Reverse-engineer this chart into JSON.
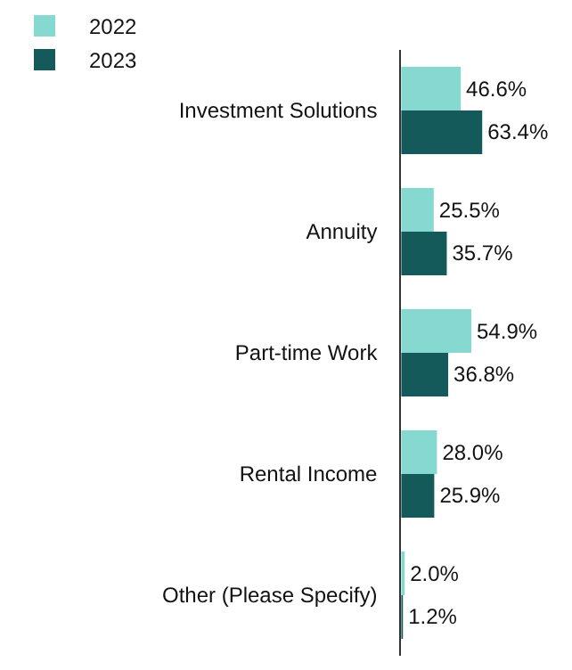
{
  "chart_data": {
    "type": "bar",
    "orientation": "horizontal",
    "categories": [
      "Investment Solutions",
      "Annuity",
      "Part-time Work",
      "Rental Income",
      "Other (Please Specify)"
    ],
    "series": [
      {
        "name": "2022",
        "color": "#86d9d1",
        "values": [
          46.6,
          25.5,
          54.9,
          28.0,
          2.0
        ],
        "value_labels": [
          "46.6%",
          "25.5%",
          "54.9%",
          "28.0%",
          "2.0%"
        ]
      },
      {
        "name": "2023",
        "color": "#145a5a",
        "values": [
          63.4,
          35.7,
          36.8,
          25.9,
          1.2
        ],
        "value_labels": [
          "63.4%",
          "35.7%",
          "36.8%",
          "25.9%",
          "1.2%"
        ]
      }
    ],
    "tick_labels": "y",
    "legend": "top left"
  }
}
